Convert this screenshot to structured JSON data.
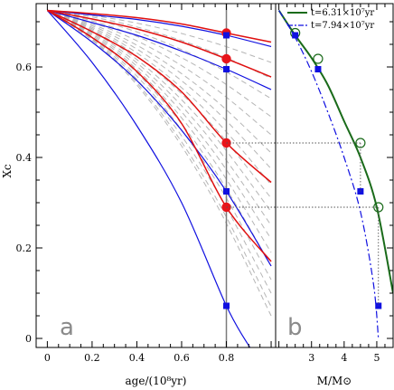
{
  "chart_data": [
    {
      "panel": "a",
      "type": "line",
      "panel_label": "a",
      "xlabel": "age/(10⁸yr)",
      "ylabel": "Xc",
      "xlim": [
        -0.05,
        1.02
      ],
      "ylim": [
        -0.02,
        0.74
      ],
      "xticks": [
        0,
        0.2,
        0.4,
        0.6,
        0.8
      ],
      "xtick_labels": [
        "0",
        "0.2",
        "0.4",
        "0.6",
        "0.8"
      ],
      "yticks": [
        0,
        0.2,
        0.4,
        0.6
      ],
      "ytick_labels": [
        "0",
        "0.2",
        "0.4",
        "0.6"
      ],
      "vertical_line_x": 0.8,
      "x0": 0.0,
      "y0": 0.725,
      "blue_series": [
        {
          "name": "",
          "color": "#1010e0",
          "x": [
            0,
            0.2,
            0.4,
            0.6,
            0.8,
            1.0
          ],
          "y": [
            0.725,
            0.715,
            0.705,
            0.69,
            0.67,
            0.645
          ]
        },
        {
          "name": "",
          "color": "#1010e0",
          "x": [
            0,
            0.2,
            0.4,
            0.6,
            0.8,
            1.0
          ],
          "y": [
            0.725,
            0.698,
            0.67,
            0.635,
            0.595,
            0.55
          ]
        },
        {
          "name": "",
          "color": "#1010e0",
          "x": [
            0,
            0.2,
            0.4,
            0.6,
            0.8,
            1.0
          ],
          "y": [
            0.725,
            0.655,
            0.57,
            0.46,
            0.325,
            0.16
          ]
        },
        {
          "name": "",
          "color": "#1010e0",
          "x": [
            0,
            0.2,
            0.4,
            0.6,
            0.8,
            0.905
          ],
          "y": [
            0.725,
            0.61,
            0.47,
            0.3,
            0.072,
            -0.02
          ]
        }
      ],
      "red_series": [
        {
          "name": "",
          "color": "#e01010",
          "x": [
            0,
            0.2,
            0.4,
            0.6,
            0.8,
            1.0
          ],
          "y": [
            0.725,
            0.718,
            0.709,
            0.695,
            0.675,
            0.655
          ]
        },
        {
          "name": "",
          "color": "#e01010",
          "x": [
            0,
            0.2,
            0.4,
            0.6,
            0.8,
            1.0
          ],
          "y": [
            0.725,
            0.706,
            0.684,
            0.655,
            0.618,
            0.578
          ]
        },
        {
          "name": "",
          "color": "#e01010",
          "x": [
            0,
            0.2,
            0.4,
            0.6,
            0.8,
            1.0
          ],
          "y": [
            0.725,
            0.678,
            0.623,
            0.545,
            0.432,
            0.345
          ]
        },
        {
          "name": "",
          "color": "#e01010",
          "x": [
            0,
            0.2,
            0.4,
            0.6,
            0.8,
            1.0
          ],
          "y": [
            0.725,
            0.665,
            0.59,
            0.475,
            0.29,
            0.17
          ]
        }
      ],
      "gray_curve_end_y": [
        0.61,
        0.575,
        0.53,
        0.49,
        0.45,
        0.41,
        0.375,
        0.34,
        0.31,
        0.28,
        0.25,
        0.22,
        0.19,
        0.16,
        0.13,
        0.1,
        0.07,
        0.05
      ],
      "red_markers": [
        {
          "x": 0.8,
          "y": 0.675
        },
        {
          "x": 0.8,
          "y": 0.618
        },
        {
          "x": 0.8,
          "y": 0.432
        },
        {
          "x": 0.8,
          "y": 0.29
        }
      ],
      "blue_markers": [
        {
          "x": 0.8,
          "y": 0.67
        },
        {
          "x": 0.8,
          "y": 0.595
        },
        {
          "x": 0.8,
          "y": 0.325
        },
        {
          "x": 0.8,
          "y": 0.072
        }
      ]
    },
    {
      "panel": "b",
      "type": "line",
      "panel_label": "b",
      "xlabel": "M/M⊙",
      "xlim": [
        1.9,
        5.5
      ],
      "ylim": [
        -0.02,
        0.74
      ],
      "xticks": [
        3,
        4,
        5
      ],
      "xtick_labels": [
        "3",
        "4",
        "5"
      ],
      "legend_position": "top-right",
      "series": [
        {
          "name": "t=6.31×10⁷yr",
          "color": "#1a6b1a",
          "style": "solid",
          "x": [
            2.0,
            2.5,
            3.0,
            3.5,
            4.0,
            4.5,
            5.0,
            5.5
          ],
          "y": [
            0.725,
            0.67,
            0.62,
            0.56,
            0.48,
            0.4,
            0.29,
            0.1
          ]
        },
        {
          "name": "t=7.94×10⁷yr",
          "color": "#1010e0",
          "style": "dash-dot",
          "x": [
            2.0,
            2.5,
            3.0,
            3.5,
            4.0,
            4.5,
            4.9,
            5.05
          ],
          "y": [
            0.725,
            0.665,
            0.59,
            0.5,
            0.4,
            0.28,
            0.12,
            0.0
          ]
        }
      ],
      "open_circles": [
        {
          "x": 2.5,
          "y": 0.675
        },
        {
          "x": 3.2,
          "y": 0.618
        },
        {
          "x": 4.5,
          "y": 0.432
        },
        {
          "x": 5.05,
          "y": 0.29
        }
      ],
      "blue_markers": [
        {
          "x": 2.5,
          "y": 0.67
        },
        {
          "x": 3.2,
          "y": 0.595
        },
        {
          "x": 4.5,
          "y": 0.325
        },
        {
          "x": 5.05,
          "y": 0.072
        }
      ],
      "dotted_guides_y": [
        0.432,
        0.29
      ]
    }
  ]
}
